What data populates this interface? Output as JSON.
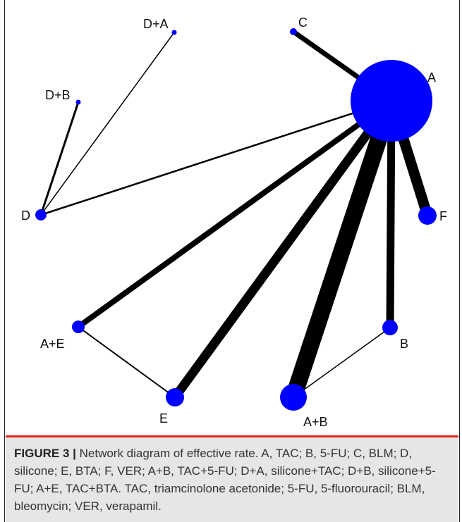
{
  "nodes": [
    {
      "id": "A",
      "label": "A"
    },
    {
      "id": "B",
      "label": "B"
    },
    {
      "id": "C",
      "label": "C"
    },
    {
      "id": "D",
      "label": "D"
    },
    {
      "id": "E",
      "label": "E"
    },
    {
      "id": "F",
      "label": "F"
    },
    {
      "id": "A+B",
      "label": "A+B"
    },
    {
      "id": "D+A",
      "label": "D+A"
    },
    {
      "id": "D+B",
      "label": "D+B"
    },
    {
      "id": "A+E",
      "label": "A+E"
    }
  ],
  "edges": [
    {
      "from": "A",
      "to": "C"
    },
    {
      "from": "A",
      "to": "D"
    },
    {
      "from": "A",
      "to": "F"
    },
    {
      "from": "A",
      "to": "B"
    },
    {
      "from": "A",
      "to": "A+B"
    },
    {
      "from": "A",
      "to": "E"
    },
    {
      "from": "A",
      "to": "A+E"
    },
    {
      "from": "D",
      "to": "D+A"
    },
    {
      "from": "D",
      "to": "D+B"
    },
    {
      "from": "A+E",
      "to": "E"
    },
    {
      "from": "A+B",
      "to": "B"
    }
  ],
  "node_color": "#0000ff",
  "edge_color": "#000000",
  "caption": {
    "label": "FIGURE 3 |",
    "text": " Network diagram of effective rate. A, TAC; B, 5-FU; C, BLM; D, silicone; E, BTA; F, VER; A+B, TAC+5-FU; D+A, silicone+TAC; D+B, silicone+5-FU; A+E, TAC+BTA. TAC, triamcinolone acetonide; 5-FU, 5-fluorouracil; BLM, bleomycin; VER, verapamil."
  }
}
